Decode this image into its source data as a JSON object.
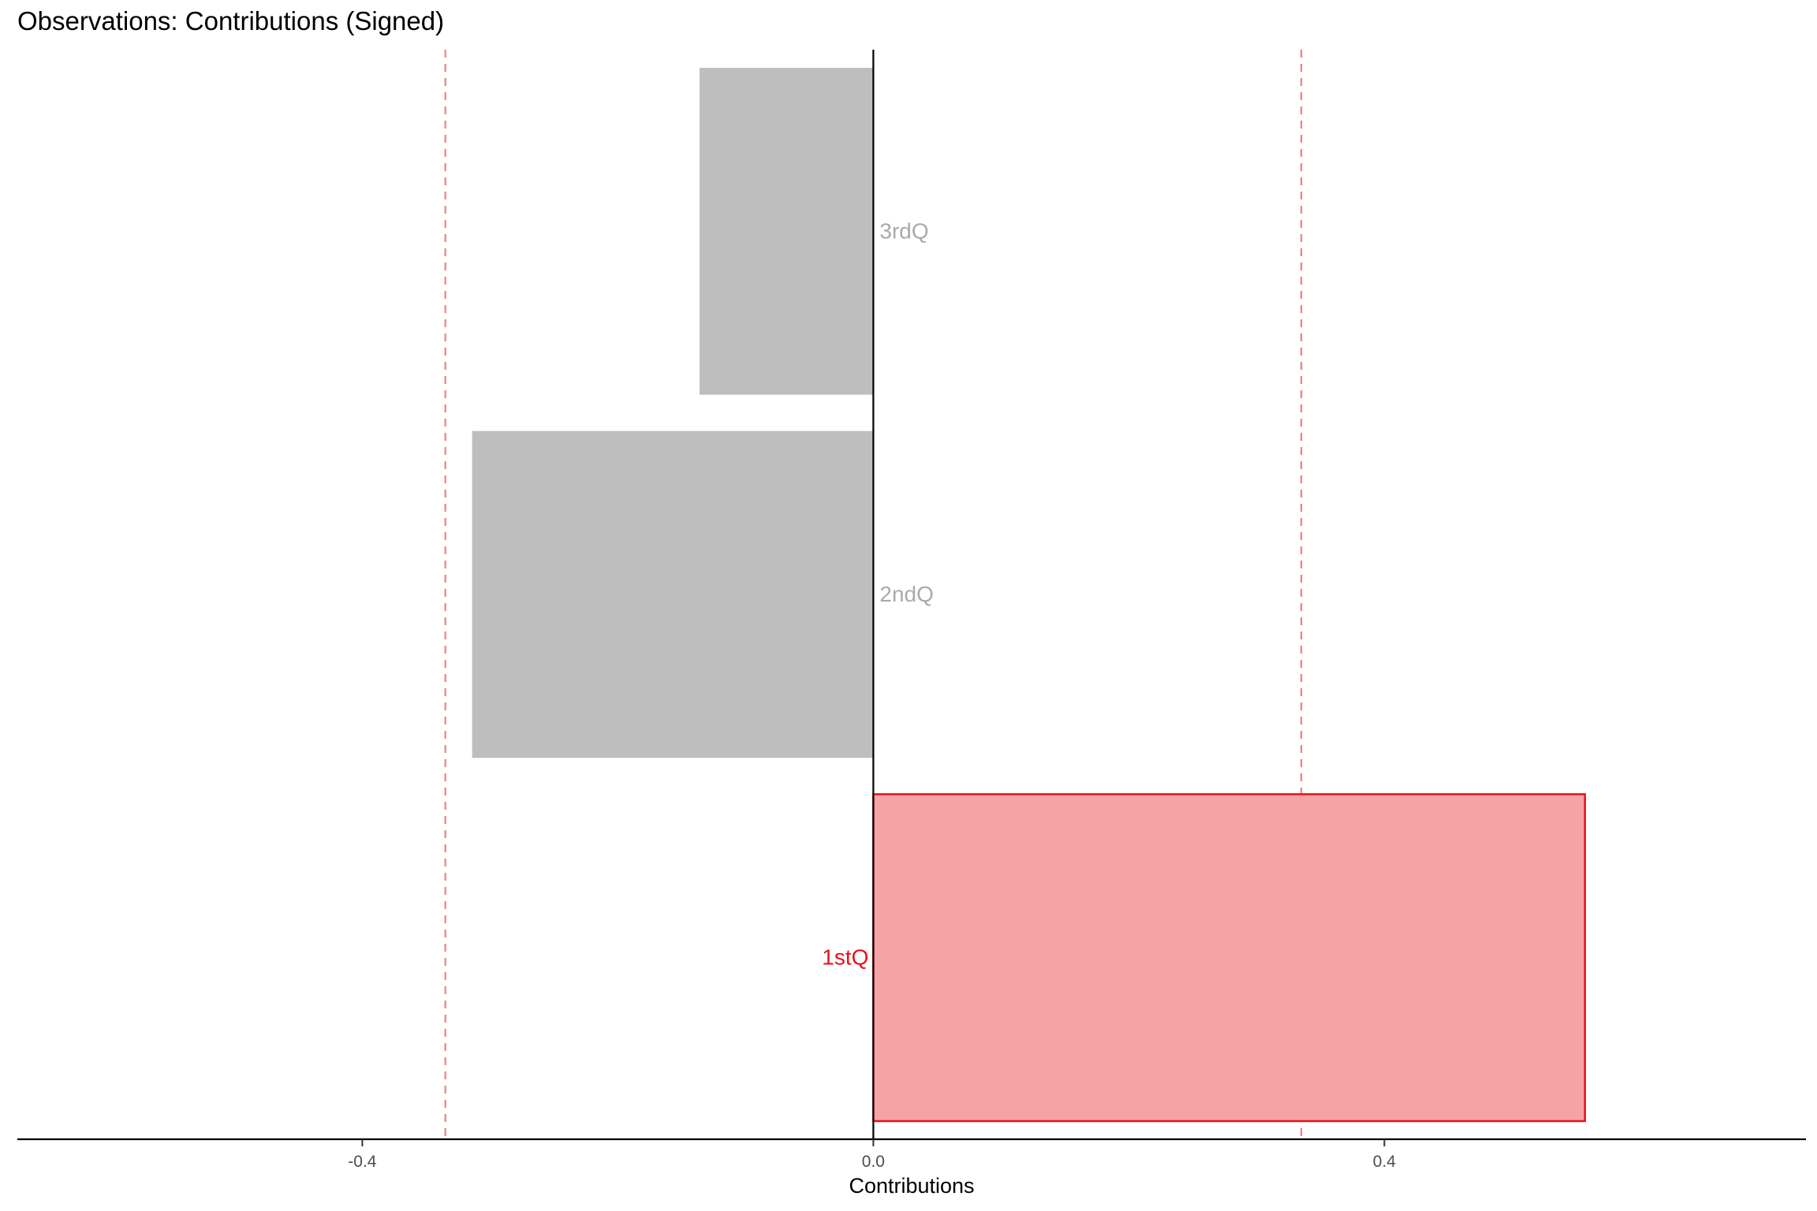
{
  "chart_data": {
    "type": "bar",
    "orientation": "horizontal",
    "title": "Observations: Contributions (Signed)",
    "xlabel": "Contributions",
    "ylabel": "",
    "categories": [
      "1stQ",
      "2ndQ",
      "3rdQ"
    ],
    "values": [
      0.557,
      -0.314,
      -0.136
    ],
    "highlighted": [
      true,
      false,
      false
    ],
    "xlim": [
      -0.67,
      0.73
    ],
    "xticks": [
      -0.4,
      0.0,
      0.4
    ],
    "xtick_labels": [
      "-0.4",
      "0.0",
      "0.4"
    ],
    "reference_lines": [
      -0.335,
      0.335
    ],
    "grid": false,
    "legend": "none",
    "colors": {
      "highlight_fill": "#f6a3a5",
      "highlight_stroke": "#e8111b",
      "highlight_label": "#e8111b",
      "muted_fill": "#bebebe",
      "muted_label": "#aaaaaa",
      "reference_line": "#f08080",
      "axis": "#000000",
      "tick_label": "#4d4d4d"
    }
  }
}
